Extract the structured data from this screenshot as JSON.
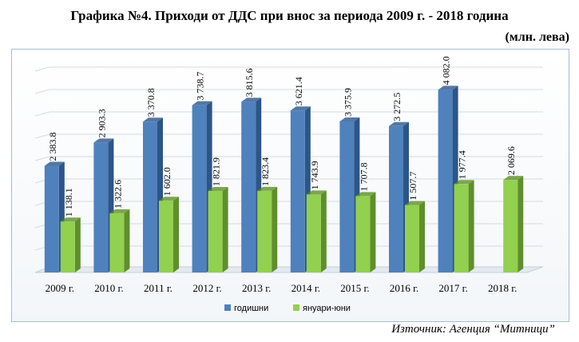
{
  "title": "Графика №4. Приходи от ДДС при внос за периода 2009 г. -  2018 година",
  "subtitle": "(млн. лева)",
  "source": "Източник: Агенция “Митници”",
  "colors": {
    "annual": "#4f81bd",
    "annual_dark": "#2c5588",
    "jan_jun": "#92d050",
    "jan_jun_dark": "#5f8f2a"
  },
  "chart_data": {
    "type": "bar",
    "title": "Графика №4. Приходи от ДДС при внос за периода 2009 г. -  2018 година",
    "ylabel": "(млн. лева)",
    "categories": [
      "2009 г.",
      "2010 г.",
      "2011 г.",
      "2012 г.",
      "2013 г.",
      "2014 г.",
      "2015 г.",
      "2016 г.",
      "2017 г.",
      "2018 г."
    ],
    "ylim": [
      0,
      4500
    ],
    "grid": true,
    "legend": "bottom",
    "series": [
      {
        "name": "годишни",
        "values": [
          2383.8,
          2903.3,
          3370.8,
          3738.7,
          3815.6,
          3621.4,
          3375.9,
          3272.5,
          4082.0,
          null
        ],
        "labels": [
          "2 383.8",
          "2 903.3",
          "3 370.8",
          "3 738.7",
          "3 815.6",
          "3 621.4",
          "3 375.9",
          "3 272.5",
          "4 082.0",
          ""
        ]
      },
      {
        "name": "януари-юни",
        "values": [
          1138.1,
          1322.6,
          1602.0,
          1821.9,
          1823.4,
          1743.9,
          1707.8,
          1507.7,
          1977.4,
          2069.6
        ],
        "labels": [
          "1 138.1",
          "1 322.6",
          "1 602.0",
          "1 821.9",
          "1 823.4",
          "1 743.9",
          "1 707.8",
          "1 507.7",
          "1 977.4",
          "2 069.6"
        ]
      }
    ]
  }
}
